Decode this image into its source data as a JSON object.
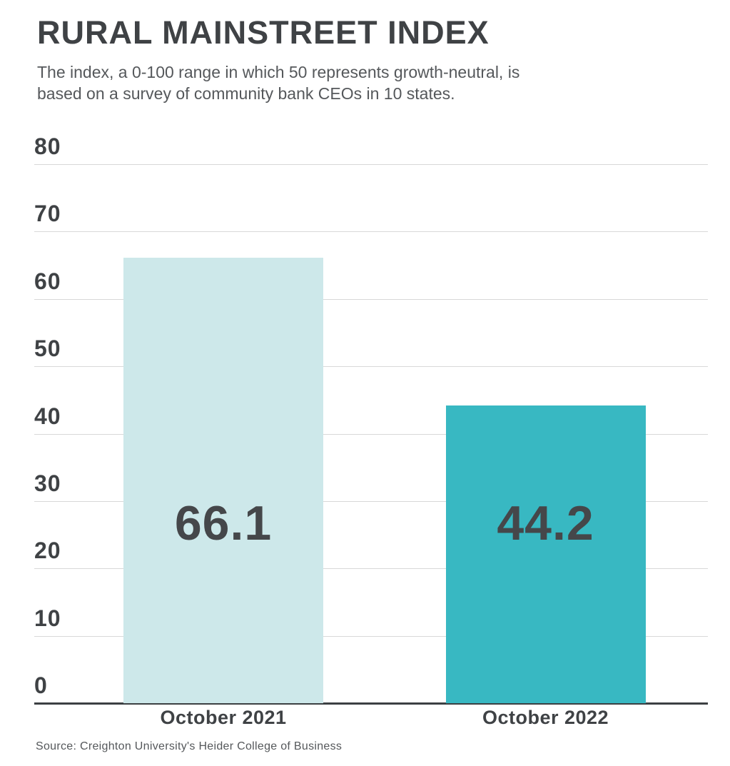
{
  "chart_data": {
    "type": "bar",
    "title": "RURAL MAINSTREET INDEX",
    "subtitle": "The index, a 0-100 range in which 50 represents growth-neutral, is based on a survey of community bank CEOs in 10 states.",
    "subtitle_lines": [
      "The index, a 0-100 range in which 50 represents growth-neutral, is",
      "based on a survey of community bank CEOs in 10 states."
    ],
    "categories": [
      "October 2021",
      "October 2022"
    ],
    "values": [
      66.1,
      44.2
    ],
    "value_labels": [
      "66.1",
      "44.2"
    ],
    "bar_colors": [
      "#cde8ea",
      "#38b8c2"
    ],
    "xlabel": "",
    "ylabel": "",
    "ylim": [
      0,
      80
    ],
    "yticks": [
      0,
      10,
      20,
      30,
      40,
      50,
      60,
      70,
      80
    ],
    "grid": true,
    "legend": "none",
    "source": "Source: Creighton University's Heider College of Business"
  }
}
